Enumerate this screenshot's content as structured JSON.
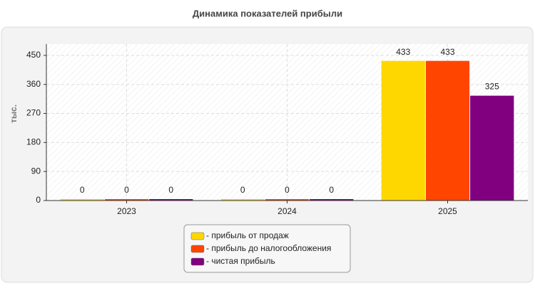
{
  "chart_data": {
    "type": "bar",
    "title": "Динамика показателей прибыли",
    "y_label": "тыс.",
    "categories": [
      "2023",
      "2024",
      "2025"
    ],
    "series": [
      {
        "name": "- прибыль от продаж",
        "color": "#ffd700",
        "values": [
          0,
          0,
          433
        ]
      },
      {
        "name": "- прибыль до налогообложения",
        "color": "#ff4500",
        "values": [
          0,
          0,
          433
        ]
      },
      {
        "name": "- чистая прибыль",
        "color": "#800080",
        "values": [
          0,
          0,
          325
        ]
      }
    ],
    "ylim": [
      0,
      485
    ],
    "yticks": [
      0,
      90,
      180,
      270,
      360,
      450
    ],
    "grid": true
  }
}
